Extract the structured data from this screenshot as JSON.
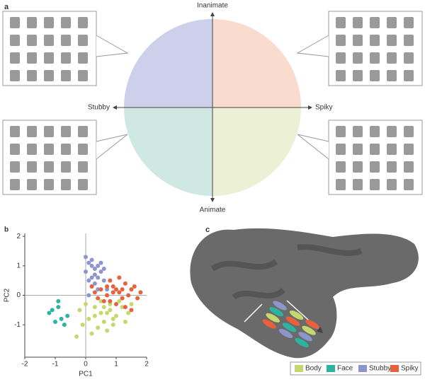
{
  "panel_a": {
    "label": "a",
    "top": "Inanimate",
    "bottom": "Animate",
    "left": "Stubby",
    "right": "Spiky"
  },
  "chart_data": {
    "type": "scatter",
    "panel_label": "b",
    "x_label": "PC1",
    "y_label": "PC2",
    "xlim": [
      -2,
      2
    ],
    "xticks": [
      -2,
      -1,
      0,
      1,
      2
    ],
    "ylim": [
      -2.1,
      2.1
    ],
    "yticks": [
      -1,
      0,
      1,
      2
    ],
    "zero_lines": true,
    "series": [
      {
        "name": "Body",
        "color": "#c5d86d",
        "x": [
          -0.2,
          0.1,
          0.3,
          0.5,
          0.6,
          0.8,
          1.0,
          1.2,
          1.4,
          0.4,
          0.7,
          0.9,
          0.2,
          -0.1,
          0.5,
          0.8,
          1.1,
          0.3,
          0.6,
          1.3,
          -0.3,
          0.0,
          0.9,
          1.5,
          0.7
        ],
        "values": [
          -0.5,
          -0.8,
          -0.4,
          -0.6,
          -0.9,
          -0.5,
          -0.7,
          -0.4,
          -0.6,
          -1.1,
          -1.2,
          -1.0,
          -1.3,
          -1.0,
          -0.2,
          -0.3,
          -0.2,
          -0.7,
          -0.4,
          -0.9,
          -1.4,
          -0.3,
          -0.8,
          -0.3,
          -0.6
        ]
      },
      {
        "name": "Face",
        "color": "#2bb5a0",
        "x": [
          -1.1,
          -0.9,
          -0.8,
          -1.0,
          -0.7,
          -1.2,
          -0.9,
          -0.6
        ],
        "values": [
          -0.5,
          -0.4,
          -0.8,
          -0.9,
          -1.0,
          -0.6,
          -0.2,
          -0.7
        ]
      },
      {
        "name": "Stubby",
        "color": "#8c96cc",
        "x": [
          0.0,
          0.1,
          0.2,
          0.3,
          0.4,
          0.5,
          0.2,
          0.1,
          0.3,
          0.6,
          0.4,
          0.0,
          0.2,
          0.5,
          0.3,
          0.1,
          0.7,
          0.4,
          0.2,
          0.6
        ],
        "values": [
          1.3,
          1.1,
          1.2,
          0.9,
          1.0,
          0.8,
          0.6,
          0.5,
          0.4,
          0.5,
          0.2,
          0.8,
          0.3,
          1.1,
          0.7,
          0.0,
          0.2,
          0.6,
          1.0,
          0.9
        ]
      },
      {
        "name": "Spiky",
        "color": "#e8603c",
        "x": [
          0.3,
          0.5,
          0.7,
          0.9,
          1.1,
          1.3,
          1.5,
          1.7,
          0.6,
          0.8,
          1.0,
          1.2,
          1.4,
          1.6,
          0.4,
          0.9,
          1.1,
          1.3,
          0.7,
          1.5,
          1.8,
          1.0,
          0.2,
          1.2,
          0.8
        ],
        "values": [
          0.1,
          0.2,
          0.0,
          0.3,
          0.1,
          0.4,
          0.2,
          -0.1,
          -0.2,
          0.5,
          -0.3,
          -0.1,
          0.0,
          0.3,
          -0.1,
          0.1,
          0.6,
          -0.4,
          0.3,
          -0.5,
          0.1,
          0.2,
          0.3,
          0.2,
          -0.2
        ]
      }
    ]
  },
  "panel_c": {
    "label": "c"
  }
}
